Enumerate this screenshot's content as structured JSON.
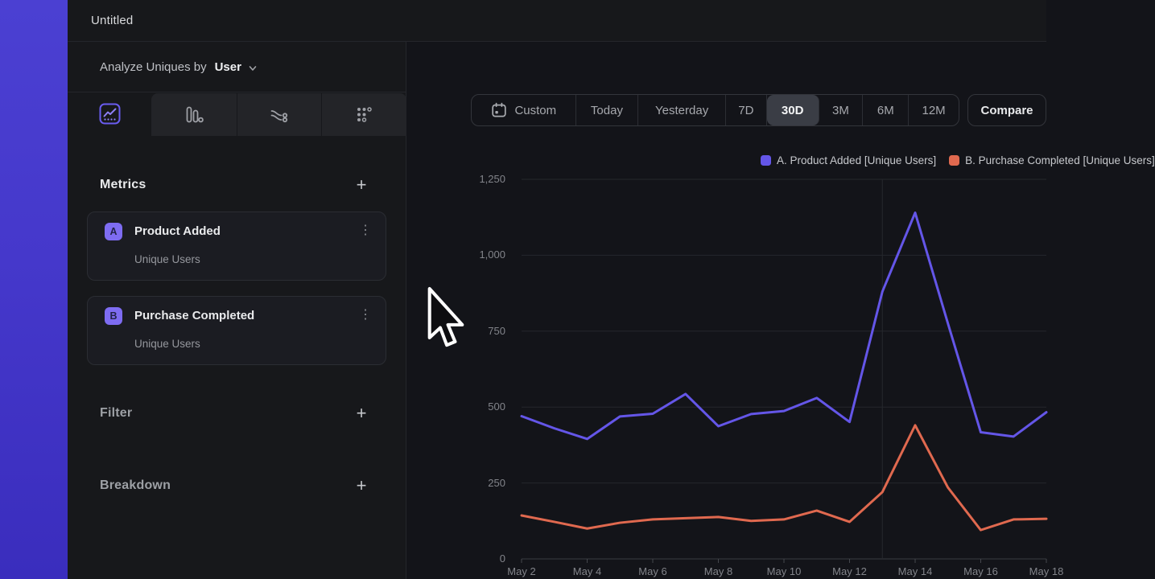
{
  "window": {
    "title": "Untitled"
  },
  "sidebar": {
    "analyze_prefix": "Analyze Uniques by",
    "analyze_value": "User",
    "metrics_heading": "Metrics",
    "metrics_add": "+",
    "cards": [
      {
        "badge": "A",
        "title": "Product Added",
        "subtitle": "Unique Users"
      },
      {
        "badge": "B",
        "title": "Purchase Completed",
        "subtitle": "Unique Users"
      }
    ],
    "filter_heading": "Filter",
    "filter_add": "+",
    "breakdown_heading": "Breakdown",
    "breakdown_add": "+"
  },
  "toolbar": {
    "ranges": [
      "Custom",
      "Today",
      "Yesterday",
      "7D",
      "30D",
      "3M",
      "6M",
      "12M"
    ],
    "selected": "30D",
    "compare_label": "Compare"
  },
  "chart_data": {
    "type": "line",
    "categories": [
      "May 2",
      "May 3",
      "May 4",
      "May 5",
      "May 6",
      "May 7",
      "May 8",
      "May 9",
      "May 10",
      "May 11",
      "May 12",
      "May 13",
      "May 14",
      "May 15",
      "May 16",
      "May 17",
      "May 18"
    ],
    "series": [
      {
        "name": "A. Product Added [Unique Users]",
        "color": "#6456e8",
        "values": [
          470,
          430,
          395,
          469,
          478,
          543,
          437,
          477,
          487,
          530,
          451,
          880,
          1140,
          775,
          417,
          403,
          483
        ]
      },
      {
        "name": "B. Purchase Completed [Unique Users]",
        "color": "#e0694f",
        "values": [
          143,
          122,
          100,
          119,
          130,
          134,
          138,
          125,
          130,
          159,
          122,
          220,
          440,
          235,
          95,
          130,
          132
        ]
      }
    ],
    "ylim": [
      0,
      1250
    ],
    "y_ticks": [
      0,
      250,
      500,
      750,
      1000,
      1250
    ],
    "y_tick_labels": [
      "0",
      "250",
      "500",
      "750",
      "1,000",
      "1,250"
    ],
    "x_label_every": 2,
    "grid": "horizontal",
    "vline_at": "May 13",
    "legend_position": "top-right"
  },
  "colors": {
    "accent_purple": "#6456e8",
    "accent_orange": "#e0694f",
    "badge_bg": "#7e6cf2",
    "gradient_top": "#4b40d2",
    "gradient_bottom": "#3a2dbd",
    "panel_bg": "#17181b",
    "chart_bg": "#131419"
  }
}
